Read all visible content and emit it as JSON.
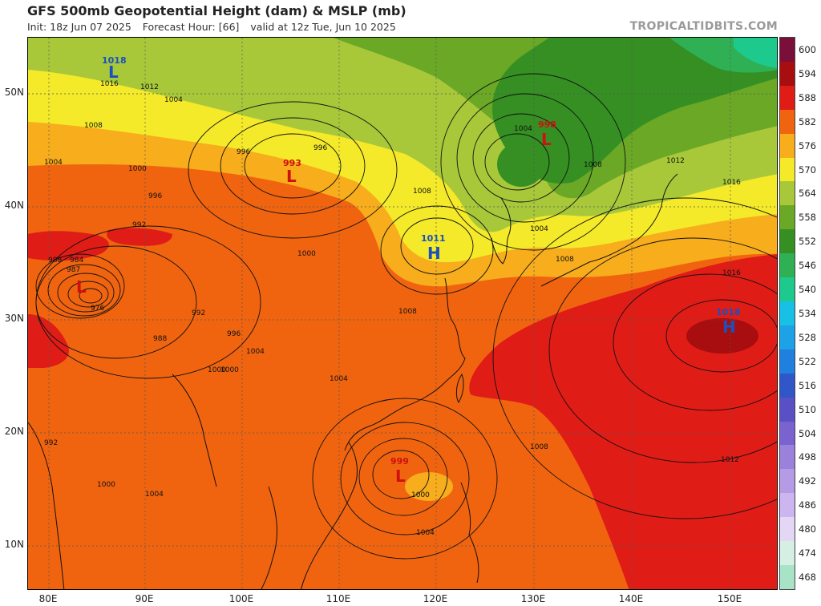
{
  "header": {
    "title": "GFS 500mb Geopotential Height (dam) & MSLP (mb)",
    "init": "Init: 18z Jun 07 2025",
    "forecast_hour": "Forecast Hour: [66]",
    "valid": "valid at 12z Tue, Jun 10 2025",
    "brand": "TROPICALTIDBITS.COM"
  },
  "axes": {
    "lat_labels": [
      "50N",
      "40N",
      "30N",
      "20N",
      "10N"
    ],
    "lon_labels": [
      "80E",
      "90E",
      "100E",
      "110E",
      "120E",
      "130E",
      "140E",
      "150E"
    ]
  },
  "colorbar": {
    "labels": [
      "600",
      "594",
      "588",
      "582",
      "576",
      "570",
      "564",
      "558",
      "552",
      "546",
      "540",
      "534",
      "528",
      "522",
      "516",
      "510",
      "504",
      "498",
      "492",
      "486",
      "480",
      "474",
      "468"
    ],
    "colors": [
      "#7a0f3a",
      "#a80d10",
      "#e01c17",
      "#f0640f",
      "#f7ad1c",
      "#f4ea29",
      "#a8c83a",
      "#6aa826",
      "#358f23",
      "#2fb055",
      "#1dc98c",
      "#18c0e6",
      "#1da2e8",
      "#1f80e0",
      "#3056c8",
      "#5a4fc4",
      "#7a63cf",
      "#9a82dc",
      "#b59be6",
      "#cdb6ef",
      "#e4d6f5",
      "#d6efe4",
      "#a8e3c8"
    ]
  },
  "systems": [
    {
      "type": "L",
      "value": "998",
      "color": "#d01010"
    },
    {
      "type": "L",
      "value": "993",
      "color": "#d01010"
    },
    {
      "type": "L",
      "value": "",
      "color": "#d01010"
    },
    {
      "type": "L",
      "value": "999",
      "color": "#d01010"
    },
    {
      "type": "L",
      "value": "1018",
      "color": "#1a50c0"
    },
    {
      "type": "H",
      "value": "1011",
      "color": "#1a50c0"
    },
    {
      "type": "H",
      "value": "1018",
      "color": "#1a50c0"
    }
  ],
  "isobar_labels": [
    "1016",
    "1012",
    "1004",
    "1008",
    "996",
    "1004",
    "1000",
    "996",
    "992",
    "988",
    "984",
    "987",
    "976",
    "992",
    "988",
    "1000",
    "996",
    "1004",
    "1008",
    "1000",
    "1004",
    "1008",
    "1012",
    "1016",
    "1008",
    "1004",
    "1000",
    "996",
    "992",
    "1000",
    "1004",
    "1000",
    "1004",
    "1008",
    "1012",
    "1016",
    "1004",
    "1008"
  ]
}
